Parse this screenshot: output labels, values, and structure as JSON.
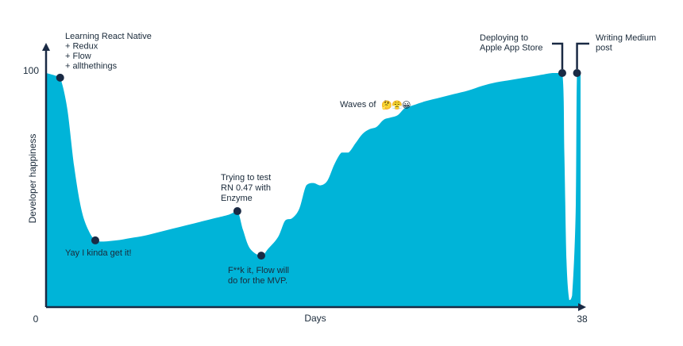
{
  "chart_data": {
    "type": "area",
    "xlabel": "Days",
    "ylabel": "Developer happiness",
    "xlim": [
      0,
      38
    ],
    "ylim": [
      0,
      100
    ],
    "x_tick_labels": [
      "0",
      "38"
    ],
    "y_tick_labels": [
      "100"
    ],
    "fill_color": "#00b4d8",
    "axis_color": "#1a2a44",
    "marker_color": "#1a2a44",
    "series": [
      {
        "x": [
          0,
          0.6,
          1,
          1.5,
          2,
          2.5,
          3,
          3.5,
          4,
          5,
          6,
          7,
          8,
          9,
          10,
          11,
          12,
          13,
          13.6,
          14,
          14.5,
          15.3,
          15.8,
          16.5,
          17,
          17.5,
          18,
          18.5,
          19,
          19.5,
          20,
          20.5,
          21,
          21.5,
          22,
          22.5,
          23,
          23.5,
          24,
          24.5,
          25,
          25.5,
          26,
          27,
          28,
          29,
          30,
          31,
          32,
          33,
          34,
          35,
          36,
          36.7,
          36.85,
          37.0,
          37.2,
          37.4,
          37.65,
          37.75,
          38
        ],
        "y": [
          100,
          99,
          98,
          85,
          60,
          42,
          33,
          28.5,
          28,
          28.5,
          29.5,
          30.5,
          32,
          33.5,
          35,
          36.5,
          38,
          39.5,
          41,
          33,
          25,
          22,
          25,
          30,
          37,
          38,
          42,
          52,
          53,
          52,
          54,
          61,
          66,
          66,
          70,
          74,
          76,
          77,
          80,
          81,
          82,
          85,
          86,
          88,
          89.5,
          91,
          92.5,
          94.5,
          96,
          97,
          98,
          99,
          100,
          100,
          65,
          20,
          3,
          5,
          40,
          100,
          100
        ]
      }
    ],
    "points": [
      {
        "x": 1,
        "y": 98
      },
      {
        "x": 3.5,
        "y": 28.5
      },
      {
        "x": 13.6,
        "y": 41
      },
      {
        "x": 15.3,
        "y": 22
      },
      {
        "x": 36.7,
        "y": 100
      },
      {
        "x": 37.75,
        "y": 100
      }
    ],
    "annotations": [
      {
        "lines": [
          "Learning React Native",
          "+ Redux",
          "+ Flow",
          "+ allthethings"
        ]
      },
      {
        "lines": [
          "Yay I kinda get it!"
        ]
      },
      {
        "lines": [
          "Trying to test",
          "RN 0.47 with",
          "Enzyme"
        ]
      },
      {
        "lines": [
          "F**k it, Flow will",
          "do for the MVP."
        ]
      },
      {
        "lines": [
          "Waves of"
        ],
        "emojis": [
          "🤔",
          "😤",
          "😀"
        ]
      },
      {
        "lines": [
          "Deploying to",
          "Apple App Store"
        ]
      },
      {
        "lines": [
          "Writing Medium",
          "post"
        ]
      }
    ]
  }
}
